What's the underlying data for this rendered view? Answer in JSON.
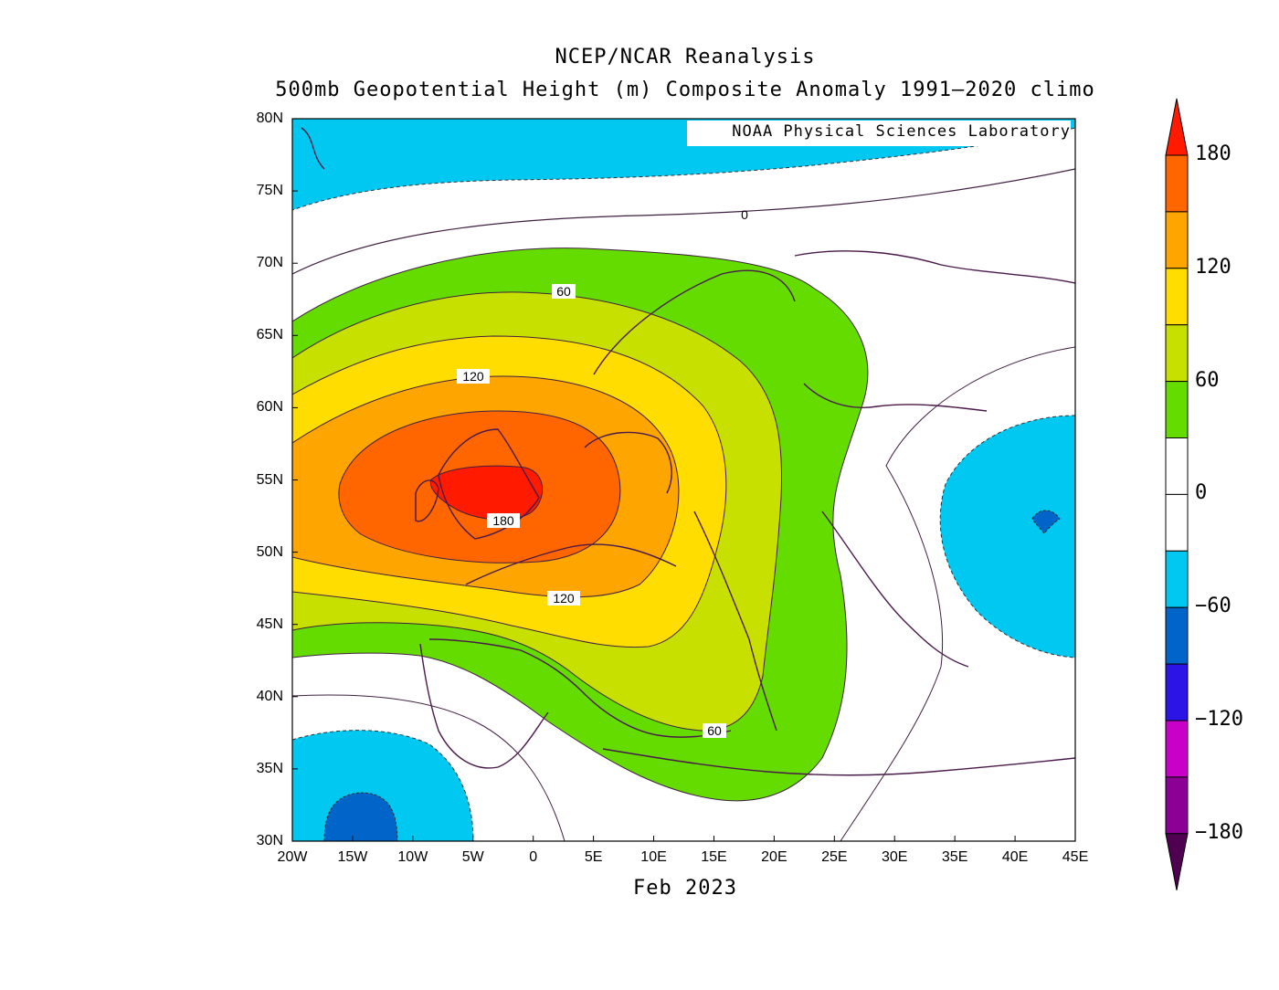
{
  "title": {
    "line1": "NCEP/NCAR Reanalysis",
    "line2": "500mb Geopotential Height (m) Composite Anomaly 1991–2020 climo"
  },
  "credit": "NOAA Physical Sciences Laboratory",
  "period": "Feb 2023",
  "axes": {
    "x_ticks": [
      "20W",
      "15W",
      "10W",
      "5W",
      "0",
      "5E",
      "10E",
      "15E",
      "20E",
      "25E",
      "30E",
      "35E",
      "40E",
      "45E"
    ],
    "y_ticks": [
      "80N",
      "75N",
      "70N",
      "65N",
      "60N",
      "55N",
      "50N",
      "45N",
      "40N",
      "35N",
      "30N"
    ]
  },
  "colorbar": {
    "labels": [
      "180",
      "120",
      "60",
      "0",
      "−60",
      "−120",
      "−180"
    ],
    "colors": [
      "#ff1a00",
      "#ff6600",
      "#ffa500",
      "#ffdd00",
      "#c8e000",
      "#64dc00",
      "#ffffff",
      "#ffffff",
      "#00c8f0",
      "#0064c8",
      "#2d14e6",
      "#c800c8",
      "#8c0096",
      "#500050"
    ]
  },
  "contour_labels": {
    "zero": "0",
    "sixty_north": "60",
    "one_twenty_north": "120",
    "one_eighty": "180",
    "one_twenty_south": "120",
    "sixty_south": "60"
  },
  "fill_colors": {
    "green": "#64dc00",
    "lime": "#c8e000",
    "yellow": "#ffdd00",
    "orange": "#ffa500",
    "dark_orange": "#ff6600",
    "red": "#ff1a00",
    "cyan": "#00c8f0",
    "blue": "#0064c8"
  }
}
